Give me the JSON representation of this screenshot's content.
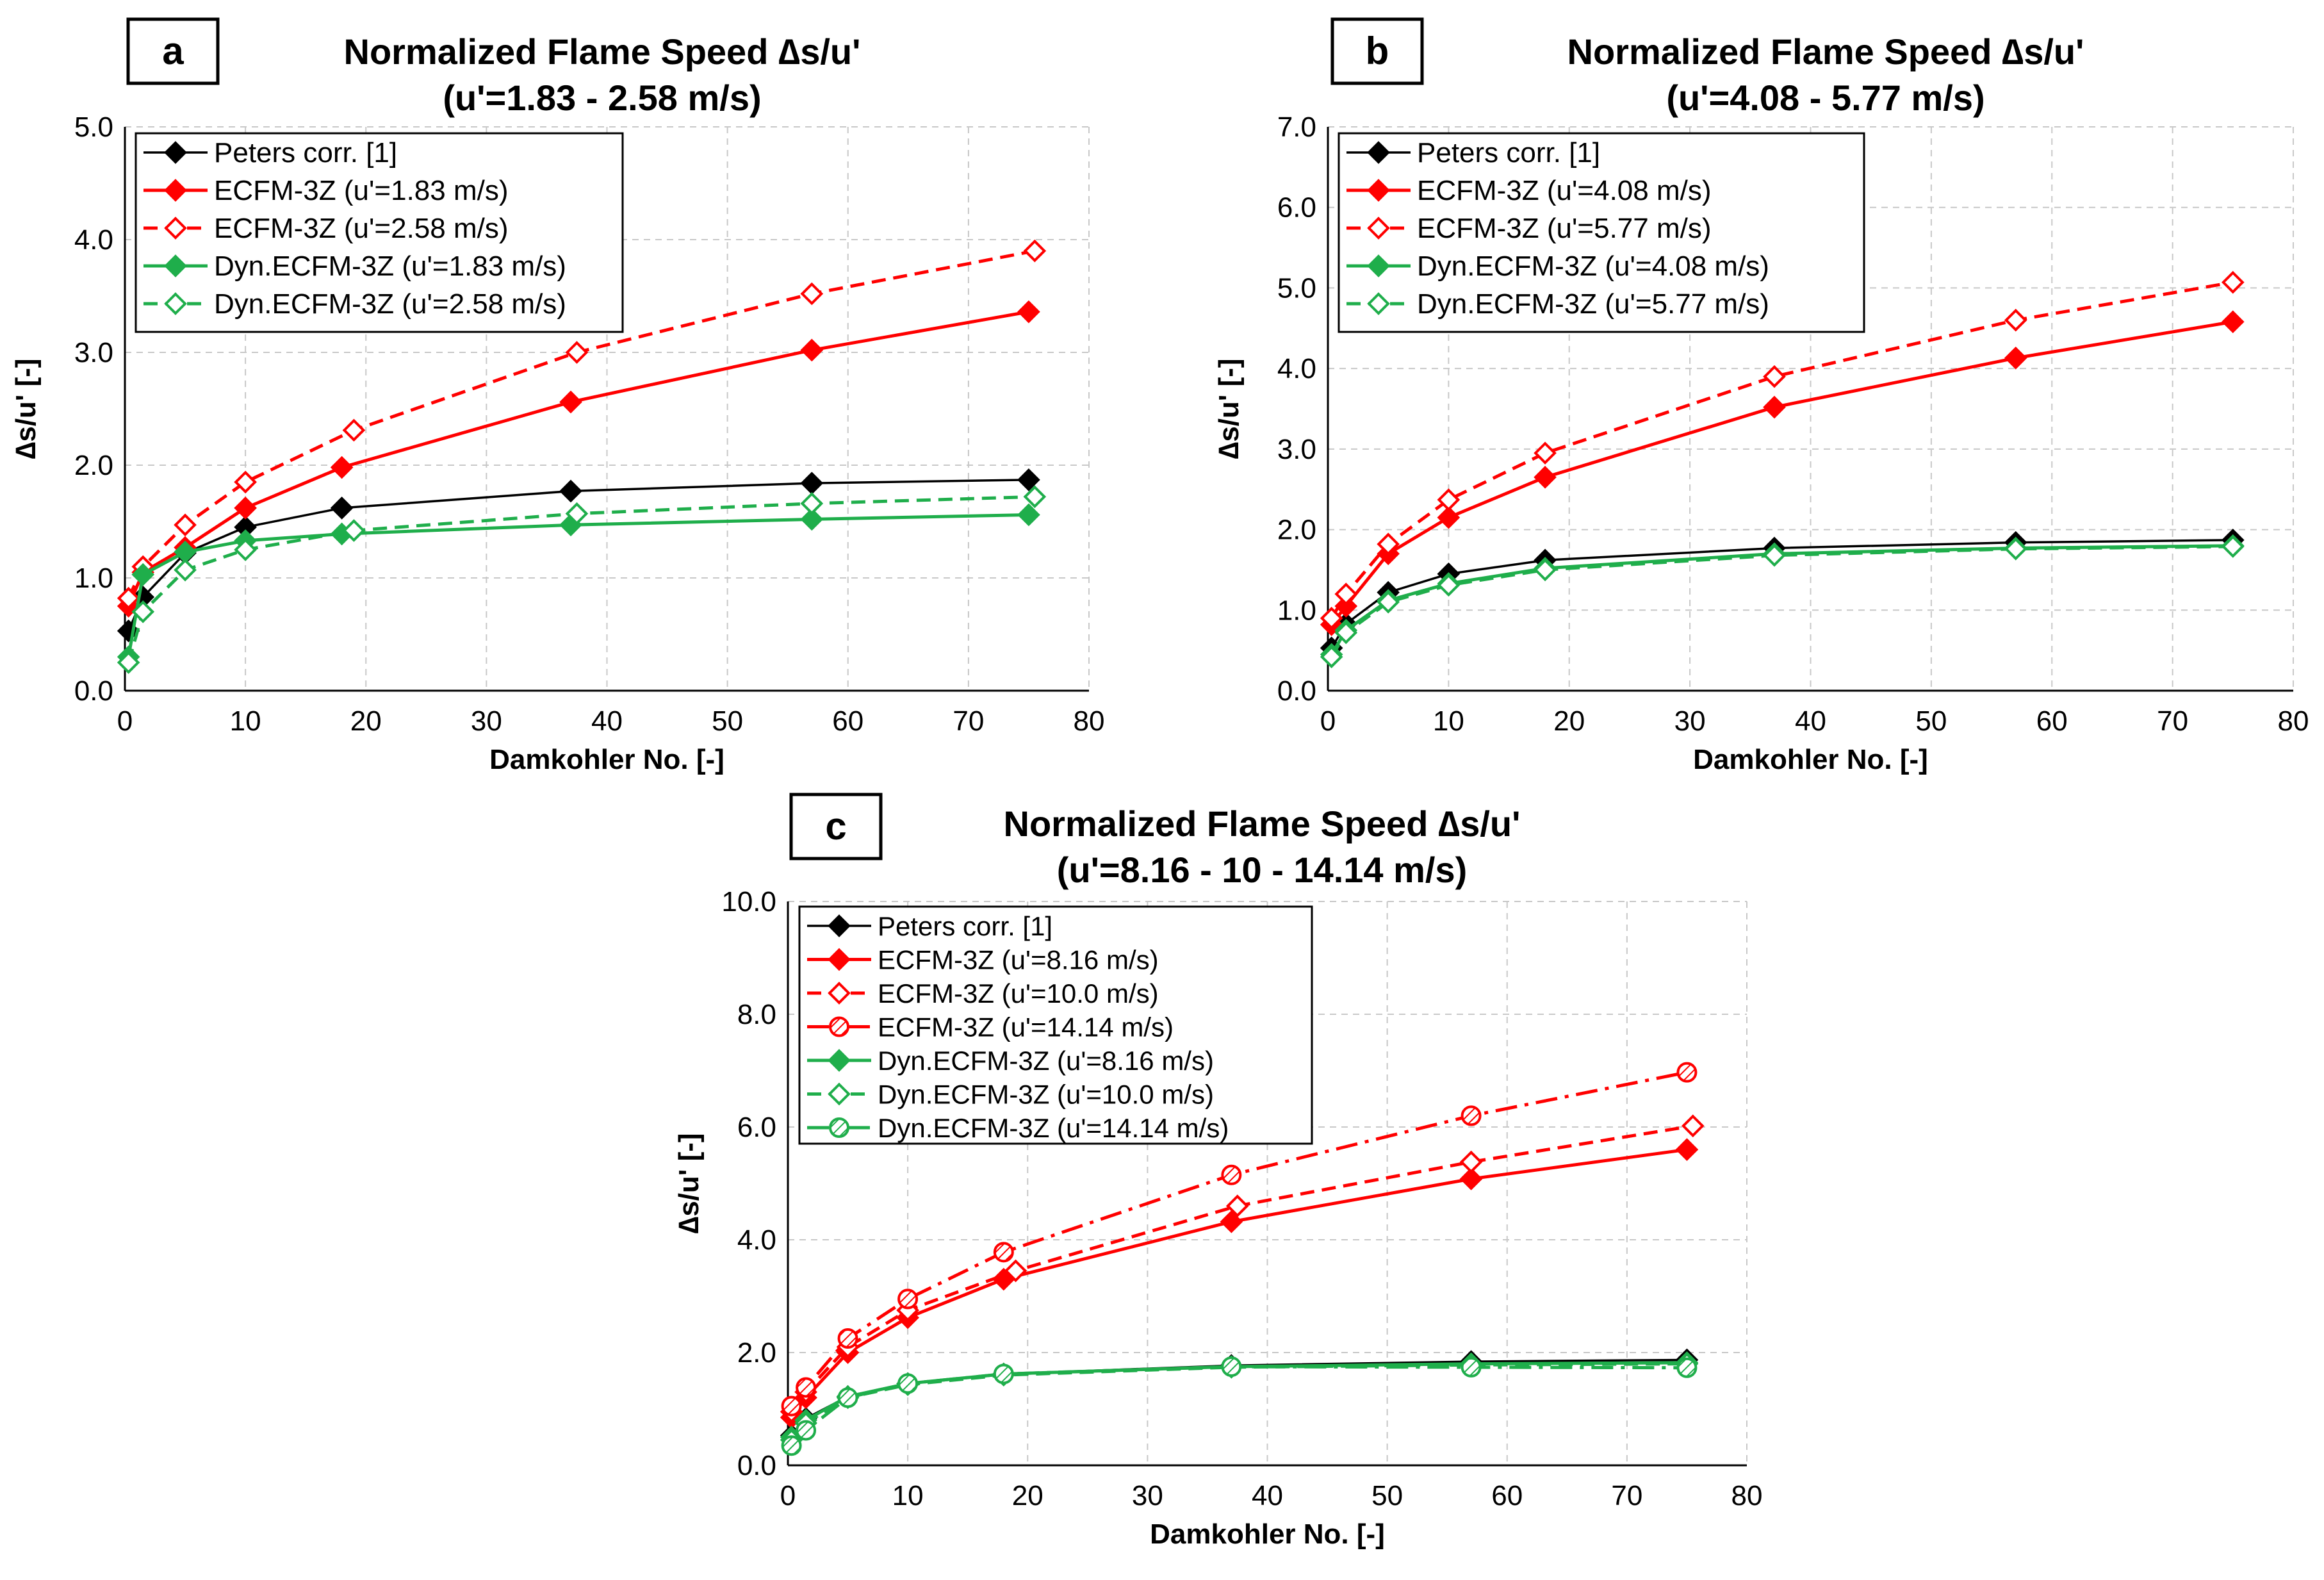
{
  "figure": {
    "panels": [
      {
        "id": "a",
        "title_line1": "Normalized Flame Speed ∆s/u'",
        "title_line2": "(u'=1.83 - 2.58 m/s)"
      },
      {
        "id": "b",
        "title_line1": "Normalized Flame Speed ∆s/u'",
        "title_line2": "(u'=4.08 - 5.77 m/s)"
      },
      {
        "id": "c",
        "title_line1": "Normalized Flame Speed ∆s/u'",
        "title_line2": "(u'=8.16 - 10 - 14.14 m/s)"
      }
    ]
  },
  "colors": {
    "black": "#000000",
    "red": "#ff0000",
    "green": "#1fae4b",
    "grid": "#c8c8c8"
  },
  "chart_data": [
    {
      "type": "line",
      "panel": "a",
      "title": "Normalized Flame Speed ∆s/u' (u'=1.83 - 2.58 m/s)",
      "xlabel": "Damkohler No. [-]",
      "ylabel": "∆s/u' [-]",
      "xlim": [
        0,
        80
      ],
      "ylim": [
        0,
        5
      ],
      "xticks": [
        0,
        10,
        20,
        30,
        40,
        50,
        60,
        70,
        80
      ],
      "xtick_labels": [
        "0",
        "10",
        "20",
        "30",
        "40",
        "50",
        "60",
        "70",
        "80"
      ],
      "yticks": [
        0,
        1,
        2,
        3,
        4,
        5
      ],
      "ytick_labels": [
        "0.0",
        "1.0",
        "2.0",
        "3.0",
        "4.0",
        "5.0"
      ],
      "grid": true,
      "legend_position": "top-left",
      "series": [
        {
          "name": "Peters corr. [1]",
          "color": "black",
          "dash": "solid",
          "marker": "diamond",
          "x": [
            0.3,
            1.5,
            5,
            10,
            18,
            37,
            57,
            75
          ],
          "y": [
            0.53,
            0.83,
            1.22,
            1.45,
            1.62,
            1.77,
            1.84,
            1.87
          ]
        },
        {
          "name": "ECFM-3Z (u'=1.83 m/s)",
          "color": "red",
          "dash": "solid",
          "marker": "diamond",
          "x": [
            0.3,
            1.5,
            5,
            10,
            18,
            37,
            57,
            75
          ],
          "y": [
            0.75,
            1.05,
            1.27,
            1.62,
            1.98,
            2.56,
            3.02,
            3.36
          ]
        },
        {
          "name": "ECFM-3Z (u'=2.58 m/s)",
          "color": "red",
          "dash": "dashed",
          "marker": "diamond-open",
          "x": [
            0.3,
            1.5,
            5,
            10,
            19,
            37.5,
            57,
            75.5
          ],
          "y": [
            0.82,
            1.1,
            1.47,
            1.85,
            2.31,
            3.0,
            3.52,
            3.9
          ]
        },
        {
          "name": "Dyn.ECFM-3Z (u'=1.83 m/s)",
          "color": "green",
          "dash": "solid",
          "marker": "diamond",
          "x": [
            0.3,
            1.5,
            5,
            10,
            18,
            37,
            57,
            75
          ],
          "y": [
            0.3,
            1.03,
            1.23,
            1.33,
            1.39,
            1.47,
            1.52,
            1.56
          ]
        },
        {
          "name": "Dyn.ECFM-3Z (u'=2.58 m/s)",
          "color": "green",
          "dash": "dashed",
          "marker": "diamond-open",
          "x": [
            0.3,
            1.5,
            5,
            10,
            19,
            37.5,
            57,
            75.5
          ],
          "y": [
            0.25,
            0.7,
            1.07,
            1.25,
            1.42,
            1.57,
            1.66,
            1.72
          ]
        }
      ]
    },
    {
      "type": "line",
      "panel": "b",
      "title": "Normalized Flame Speed ∆s/u' (u'=4.08 - 5.77 m/s)",
      "xlabel": "Damkohler No. [-]",
      "ylabel": "∆s/u' [-]",
      "xlim": [
        0,
        80
      ],
      "ylim": [
        0,
        7
      ],
      "xticks": [
        0,
        10,
        20,
        30,
        40,
        50,
        60,
        70,
        80
      ],
      "xtick_labels": [
        "0",
        "10",
        "20",
        "30",
        "40",
        "50",
        "60",
        "70",
        "80"
      ],
      "yticks": [
        0,
        1,
        2,
        3,
        4,
        5,
        6,
        7
      ],
      "ytick_labels": [
        "0.0",
        "1.0",
        "2.0",
        "3.0",
        "4.0",
        "5.0",
        "6.0",
        "7.0"
      ],
      "grid": true,
      "legend_position": "top-left",
      "series": [
        {
          "name": "Peters corr. [1]",
          "color": "black",
          "dash": "solid",
          "marker": "diamond",
          "x": [
            0.3,
            1.5,
            5,
            10,
            18,
            37,
            57,
            75
          ],
          "y": [
            0.53,
            0.83,
            1.22,
            1.45,
            1.62,
            1.77,
            1.84,
            1.87
          ]
        },
        {
          "name": "ECFM-3Z (u'=4.08 m/s)",
          "color": "red",
          "dash": "solid",
          "marker": "diamond",
          "x": [
            0.3,
            1.5,
            5,
            10,
            18,
            37,
            57,
            75
          ],
          "y": [
            0.82,
            1.05,
            1.7,
            2.15,
            2.65,
            3.52,
            4.13,
            4.58
          ]
        },
        {
          "name": "ECFM-3Z (u'=5.77 m/s)",
          "color": "red",
          "dash": "dashed",
          "marker": "diamond-open",
          "x": [
            0.3,
            1.5,
            5,
            10,
            18,
            37,
            57,
            75
          ],
          "y": [
            0.9,
            1.2,
            1.82,
            2.37,
            2.95,
            3.9,
            4.6,
            5.07
          ]
        },
        {
          "name": "Dyn.ECFM-3Z (u'=4.08 m/s)",
          "color": "green",
          "dash": "solid",
          "marker": "diamond",
          "x": [
            0.3,
            1.5,
            5,
            10,
            18,
            37,
            57,
            75
          ],
          "y": [
            0.45,
            0.75,
            1.12,
            1.33,
            1.52,
            1.7,
            1.77,
            1.8
          ]
        },
        {
          "name": "Dyn.ECFM-3Z (u'=5.77 m/s)",
          "color": "green",
          "dash": "dashed",
          "marker": "diamond-open",
          "x": [
            0.3,
            1.5,
            5,
            10,
            18,
            37,
            57,
            75
          ],
          "y": [
            0.42,
            0.72,
            1.1,
            1.31,
            1.5,
            1.68,
            1.76,
            1.79
          ]
        }
      ]
    },
    {
      "type": "line",
      "panel": "c",
      "title": "Normalized Flame Speed ∆s/u' (u'=8.16 - 10 - 14.14 m/s)",
      "xlabel": "Damkohler No. [-]",
      "ylabel": "∆s/u' [-]",
      "xlim": [
        0,
        80
      ],
      "ylim": [
        0,
        10
      ],
      "xticks": [
        0,
        10,
        20,
        30,
        40,
        50,
        60,
        70,
        80
      ],
      "xtick_labels": [
        "0",
        "10",
        "20",
        "30",
        "40",
        "50",
        "60",
        "70",
        "80"
      ],
      "yticks": [
        0,
        2,
        4,
        6,
        8,
        10
      ],
      "ytick_labels": [
        "0.0",
        "2.0",
        "4.0",
        "6.0",
        "8.0",
        "10.0"
      ],
      "grid": true,
      "legend_position": "top-left",
      "series": [
        {
          "name": "Peters corr. [1]",
          "color": "black",
          "dash": "solid",
          "marker": "diamond",
          "x": [
            0.3,
            1.5,
            5,
            10,
            18,
            37,
            57,
            75
          ],
          "y": [
            0.53,
            0.83,
            1.22,
            1.45,
            1.62,
            1.77,
            1.84,
            1.87
          ]
        },
        {
          "name": "ECFM-3Z (u'=8.16 m/s)",
          "color": "red",
          "dash": "solid",
          "marker": "diamond",
          "x": [
            0.3,
            1.5,
            5,
            10,
            18,
            37,
            57,
            75
          ],
          "y": [
            0.85,
            1.2,
            2.0,
            2.62,
            3.3,
            4.32,
            5.08,
            5.6
          ]
        },
        {
          "name": "ECFM-3Z (u'=10.0 m/s)",
          "color": "red",
          "dash": "dashed",
          "marker": "diamond-open",
          "x": [
            0.3,
            1.5,
            5,
            10,
            19,
            37.5,
            57,
            75.5
          ],
          "y": [
            0.95,
            1.3,
            2.1,
            2.75,
            3.45,
            4.6,
            5.38,
            6.02
          ]
        },
        {
          "name": "ECFM-3Z (u'=14.14 m/s)",
          "color": "red",
          "dash": "dashdot",
          "marker": "circle-hatched",
          "x": [
            0.3,
            1.5,
            5,
            10,
            18,
            37,
            57,
            75
          ],
          "y": [
            1.05,
            1.38,
            2.25,
            2.95,
            3.78,
            5.15,
            6.2,
            6.97
          ]
        },
        {
          "name": "Dyn.ECFM-3Z (u'=8.16 m/s)",
          "color": "green",
          "dash": "solid",
          "marker": "diamond",
          "x": [
            0.3,
            1.5,
            5,
            10,
            18,
            37,
            57,
            75
          ],
          "y": [
            0.5,
            0.8,
            1.22,
            1.45,
            1.62,
            1.75,
            1.8,
            1.82
          ]
        },
        {
          "name": "Dyn.ECFM-3Z (u'=10.0 m/s)",
          "color": "green",
          "dash": "dashed",
          "marker": "diamond-open",
          "x": [
            0.3,
            1.5,
            5,
            10,
            18,
            37,
            57,
            75
          ],
          "y": [
            0.45,
            0.75,
            1.2,
            1.43,
            1.6,
            1.74,
            1.78,
            1.8
          ]
        },
        {
          "name": "Dyn.ECFM-3Z (u'=14.14 m/s)",
          "color": "green",
          "dash": "dashdot",
          "marker": "circle-hatched",
          "x": [
            0.3,
            1.5,
            5,
            10,
            18,
            37,
            57,
            75
          ],
          "y": [
            0.35,
            0.62,
            1.2,
            1.45,
            1.62,
            1.75,
            1.74,
            1.73
          ]
        }
      ]
    }
  ]
}
